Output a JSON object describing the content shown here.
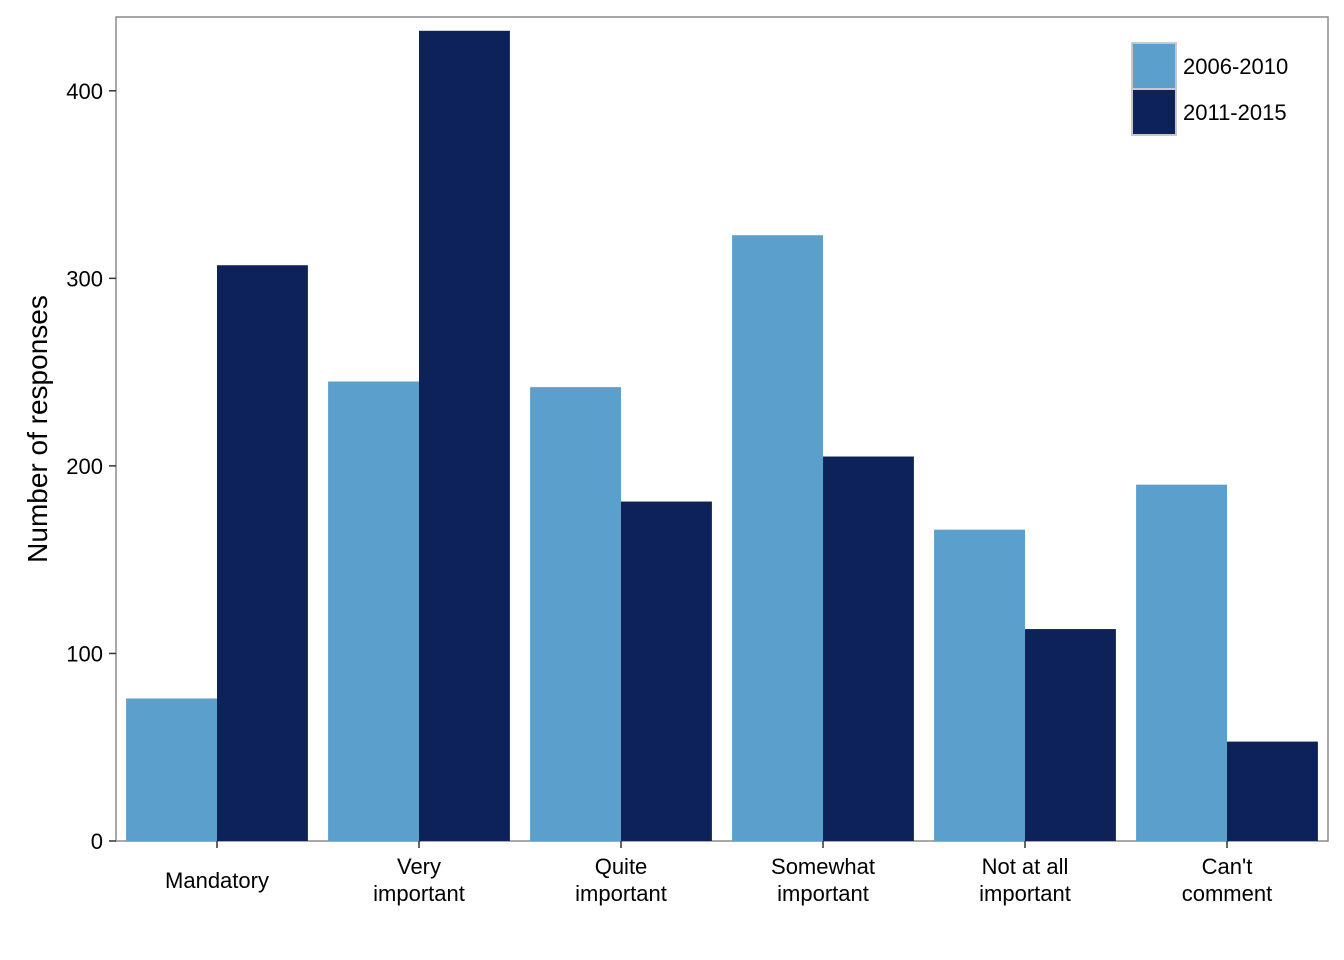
{
  "chart_data": {
    "type": "bar",
    "title": "",
    "xlabel": "",
    "ylabel": "Number of responses",
    "categories": [
      [
        "Mandatory"
      ],
      [
        "Very",
        "important"
      ],
      [
        "Quite",
        "important"
      ],
      [
        "Somewhat",
        "important"
      ],
      [
        "Not at all",
        "important"
      ],
      [
        "Can't",
        "comment"
      ]
    ],
    "series": [
      {
        "name": "2006-2010",
        "color": "#5b9fcc",
        "values": [
          76,
          245,
          242,
          323,
          166,
          190
        ]
      },
      {
        "name": "2011-2015",
        "color": "#0c2259",
        "values": [
          307,
          432,
          181,
          205,
          113,
          53
        ]
      }
    ],
    "ylim": [
      0,
      440
    ],
    "yticks": [
      0,
      100,
      200,
      300,
      400
    ],
    "grid": false,
    "legend_position": "top-right"
  }
}
